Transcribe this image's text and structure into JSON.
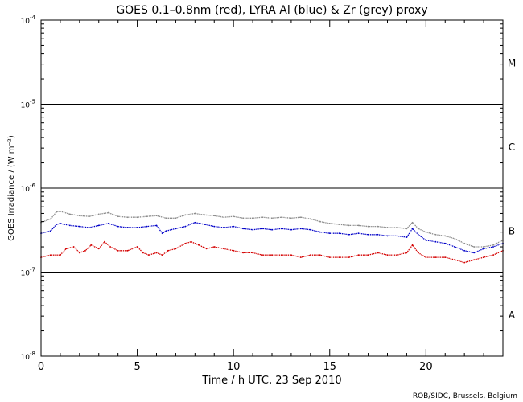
{
  "chart_data": {
    "type": "scatter",
    "title": "GOES 0.1–0.8nm (red), LYRA Al (blue) & Zr (grey) proxy",
    "xlabel": "Time / h UTC, 23 Sep 2010",
    "ylabel": "GOES Irradiance / (W m⁻²)",
    "xlim": [
      0,
      24
    ],
    "ylim": [
      1e-08,
      0.0001
    ],
    "yscale": "log",
    "x_ticks": [
      0,
      5,
      10,
      15,
      20
    ],
    "x_tick_labels": [
      "0",
      "5",
      "10",
      "15",
      "20"
    ],
    "y_ticks": [
      {
        "exp": "-8",
        "value": 1e-08
      },
      {
        "exp": "-7",
        "value": 1e-07
      },
      {
        "exp": "-6",
        "value": 1e-06
      },
      {
        "exp": "-5",
        "value": 1e-05
      },
      {
        "exp": "-4",
        "value": 0.0001
      }
    ],
    "y_tick_base": "10",
    "flare_classes": [
      {
        "label": "A",
        "value": 3.16e-08
      },
      {
        "label": "B",
        "value": 3.16e-07
      },
      {
        "label": "C",
        "value": 3.16e-06
      },
      {
        "label": "M",
        "value": 3.16e-05
      }
    ],
    "class_lines": [
      1e-07,
      1e-06,
      1e-05
    ],
    "colors": {
      "red": "#d40000",
      "blue": "#0000c8",
      "grey": "#8c8c8c"
    },
    "series": [
      {
        "color": "grey",
        "x": [
          0,
          0.5,
          0.8,
          1.0,
          1.5,
          2.0,
          2.5,
          3.0,
          3.5,
          4.0,
          4.5,
          5.0,
          5.5,
          6.0,
          6.5,
          7.0,
          7.5,
          8.0,
          8.5,
          9.0,
          9.5,
          10.0,
          10.5,
          11.0,
          11.5,
          12.0,
          12.5,
          13.0,
          13.5,
          14.0,
          14.5,
          15.0,
          15.5,
          16.0,
          16.5,
          17.0,
          17.5,
          18.0,
          18.5,
          19.0,
          19.3,
          19.6,
          20.0,
          20.5,
          21.0,
          21.5,
          22.0,
          22.5,
          23.0,
          23.5,
          24.0
        ],
        "y": [
          3.9e-07,
          4.3e-07,
          5.2e-07,
          5.3e-07,
          4.9e-07,
          4.7e-07,
          4.6e-07,
          4.9e-07,
          5.1e-07,
          4.6e-07,
          4.5e-07,
          4.5e-07,
          4.6e-07,
          4.7e-07,
          4.4e-07,
          4.4e-07,
          4.8e-07,
          5e-07,
          4.8e-07,
          4.7e-07,
          4.5e-07,
          4.6e-07,
          4.4e-07,
          4.4e-07,
          4.5e-07,
          4.4e-07,
          4.5e-07,
          4.4e-07,
          4.5e-07,
          4.3e-07,
          4e-07,
          3.8e-07,
          3.7e-07,
          3.6e-07,
          3.6e-07,
          3.5e-07,
          3.5e-07,
          3.4e-07,
          3.4e-07,
          3.3e-07,
          3.9e-07,
          3.3e-07,
          3e-07,
          2.8e-07,
          2.7e-07,
          2.5e-07,
          2.2e-07,
          2e-07,
          2e-07,
          2.1e-07,
          2.4e-07
        ]
      },
      {
        "color": "blue",
        "x": [
          0,
          0.5,
          0.8,
          1.0,
          1.5,
          2.0,
          2.5,
          3.0,
          3.5,
          4.0,
          4.5,
          5.0,
          5.5,
          6.0,
          6.3,
          6.5,
          7.0,
          7.5,
          8.0,
          8.5,
          9.0,
          9.5,
          10.0,
          10.5,
          11.0,
          11.5,
          12.0,
          12.5,
          13.0,
          13.5,
          14.0,
          14.5,
          15.0,
          15.5,
          16.0,
          16.5,
          17.0,
          17.5,
          18.0,
          18.5,
          19.0,
          19.3,
          19.6,
          20.0,
          20.5,
          21.0,
          21.5,
          22.0,
          22.5,
          23.0,
          23.5,
          24.0
        ],
        "y": [
          2.9e-07,
          3.1e-07,
          3.7e-07,
          3.8e-07,
          3.6e-07,
          3.5e-07,
          3.4e-07,
          3.6e-07,
          3.8e-07,
          3.5e-07,
          3.4e-07,
          3.4e-07,
          3.5e-07,
          3.6e-07,
          2.9e-07,
          3.1e-07,
          3.3e-07,
          3.5e-07,
          3.9e-07,
          3.7e-07,
          3.5e-07,
          3.4e-07,
          3.5e-07,
          3.3e-07,
          3.2e-07,
          3.3e-07,
          3.2e-07,
          3.3e-07,
          3.2e-07,
          3.3e-07,
          3.2e-07,
          3e-07,
          2.9e-07,
          2.9e-07,
          2.8e-07,
          2.9e-07,
          2.8e-07,
          2.8e-07,
          2.7e-07,
          2.7e-07,
          2.6e-07,
          3.3e-07,
          2.8e-07,
          2.4e-07,
          2.3e-07,
          2.2e-07,
          2e-07,
          1.8e-07,
          1.7e-07,
          1.9e-07,
          2e-07,
          2.2e-07
        ]
      },
      {
        "color": "red",
        "x": [
          0,
          0.5,
          1.0,
          1.3,
          1.7,
          2.0,
          2.3,
          2.6,
          3.0,
          3.3,
          3.6,
          4.0,
          4.5,
          5.0,
          5.3,
          5.6,
          6.0,
          6.3,
          6.6,
          7.0,
          7.5,
          7.8,
          8.2,
          8.6,
          9.0,
          9.5,
          10.0,
          10.5,
          11.0,
          11.5,
          12.0,
          12.5,
          13.0,
          13.5,
          14.0,
          14.5,
          15.0,
          15.5,
          16.0,
          16.5,
          17.0,
          17.5,
          18.0,
          18.5,
          19.0,
          19.3,
          19.6,
          20.0,
          20.5,
          21.0,
          21.5,
          22.0,
          22.5,
          23.0,
          23.5,
          24.0
        ],
        "y": [
          1.5e-07,
          1.6e-07,
          1.6e-07,
          1.9e-07,
          2e-07,
          1.7e-07,
          1.8e-07,
          2.1e-07,
          1.9e-07,
          2.3e-07,
          2e-07,
          1.8e-07,
          1.8e-07,
          2e-07,
          1.7e-07,
          1.6e-07,
          1.7e-07,
          1.6e-07,
          1.8e-07,
          1.9e-07,
          2.2e-07,
          2.3e-07,
          2.1e-07,
          1.9e-07,
          2e-07,
          1.9e-07,
          1.8e-07,
          1.7e-07,
          1.7e-07,
          1.6e-07,
          1.6e-07,
          1.6e-07,
          1.6e-07,
          1.5e-07,
          1.6e-07,
          1.6e-07,
          1.5e-07,
          1.5e-07,
          1.5e-07,
          1.6e-07,
          1.6e-07,
          1.7e-07,
          1.6e-07,
          1.6e-07,
          1.7e-07,
          2.1e-07,
          1.7e-07,
          1.5e-07,
          1.5e-07,
          1.5e-07,
          1.4e-07,
          1.3e-07,
          1.4e-07,
          1.5e-07,
          1.6e-07,
          1.8e-07
        ]
      }
    ]
  },
  "credit": "ROB/SIDC, Brussels, Belgium"
}
